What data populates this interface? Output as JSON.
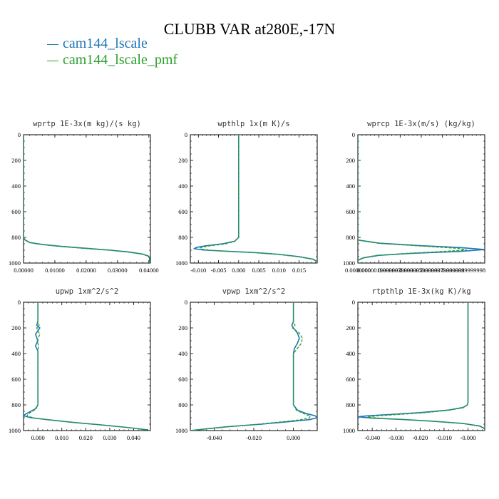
{
  "title": "CLUBB VAR at280E,-17N",
  "colors": {
    "series1": "#1f77b4",
    "series2": "#2ca02c"
  },
  "legend": [
    {
      "label": "cam144_lscale",
      "color": "#1f77b4"
    },
    {
      "label": "cam144_lscale_pmf",
      "color": "#2ca02c"
    }
  ],
  "chart_data": [
    {
      "type": "line",
      "title": "wprtp  1E-3x(m kg)/(s kg)",
      "xlim": [
        0.0,
        0.0405
      ],
      "ylim": [
        1000,
        0
      ],
      "xticks": [
        "0.00000",
        "0.01000",
        "0.02000",
        "0.03000",
        "0.04000"
      ],
      "xtick_values": [
        0.0,
        0.01,
        0.02,
        0.03,
        0.04
      ],
      "yticks": [
        0,
        200,
        400,
        600,
        800,
        1000
      ],
      "series": [
        {
          "name": "cam144_lscale",
          "points": [
            [
              0.0,
              0
            ],
            [
              0.0,
              800
            ],
            [
              0.0005,
              820
            ],
            [
              0.002,
              840
            ],
            [
              0.006,
              855
            ],
            [
              0.012,
              870
            ],
            [
              0.02,
              885
            ],
            [
              0.028,
              900
            ],
            [
              0.034,
              915
            ],
            [
              0.038,
              930
            ],
            [
              0.0398,
              945
            ],
            [
              0.0402,
              960
            ],
            [
              0.0403,
              1000
            ]
          ]
        },
        {
          "name": "cam144_lscale_pmf",
          "points": [
            [
              0.0,
              0
            ],
            [
              0.0,
              800
            ],
            [
              0.0005,
              822
            ],
            [
              0.002,
              842
            ],
            [
              0.006,
              857
            ],
            [
              0.012,
              872
            ],
            [
              0.02,
              887
            ],
            [
              0.028,
              902
            ],
            [
              0.034,
              917
            ],
            [
              0.038,
              932
            ],
            [
              0.0398,
              947
            ],
            [
              0.0402,
              962
            ],
            [
              0.0403,
              1000
            ]
          ]
        }
      ]
    },
    {
      "type": "line",
      "title": "wpthlp  1x(m K)/s",
      "xlim": [
        -0.012,
        0.0195
      ],
      "ylim": [
        1000,
        0
      ],
      "xticks": [
        "-0.010",
        "-0.005",
        "0.000",
        "0.005",
        "0.010",
        "0.015"
      ],
      "xtick_values": [
        -0.01,
        -0.005,
        0.0,
        0.005,
        0.01,
        0.015
      ],
      "yticks": [
        0,
        200,
        400,
        600,
        800,
        1000
      ],
      "series": [
        {
          "name": "cam144_lscale",
          "points": [
            [
              0.0,
              0
            ],
            [
              0.0,
              200
            ],
            [
              0.0,
              400
            ],
            [
              0.0,
              600
            ],
            [
              0.0,
              800
            ],
            [
              -0.001,
              830
            ],
            [
              -0.004,
              850
            ],
            [
              -0.008,
              865
            ],
            [
              -0.0105,
              878
            ],
            [
              -0.011,
              888
            ],
            [
              -0.009,
              898
            ],
            [
              -0.003,
              908
            ],
            [
              0.004,
              918
            ],
            [
              0.01,
              932
            ],
            [
              0.015,
              950
            ],
            [
              0.0185,
              970
            ],
            [
              0.0195,
              990
            ]
          ]
        },
        {
          "name": "cam144_lscale_pmf",
          "points": [
            [
              0.0,
              0
            ],
            [
              0.0,
              200
            ],
            [
              0.0,
              400
            ],
            [
              0.0,
              600
            ],
            [
              0.0,
              800
            ],
            [
              -0.001,
              832
            ],
            [
              -0.0035,
              852
            ],
            [
              -0.0075,
              867
            ],
            [
              -0.0095,
              880
            ],
            [
              -0.0095,
              890
            ],
            [
              -0.007,
              900
            ],
            [
              -0.002,
              910
            ],
            [
              0.004,
              920
            ],
            [
              0.01,
              934
            ],
            [
              0.015,
              952
            ],
            [
              0.0185,
              972
            ],
            [
              0.0195,
              992
            ]
          ]
        }
      ]
    },
    {
      "type": "line",
      "title": "wprcp  1E-3x(m/s) (kg/kg)",
      "xlim": [
        0.0,
        1.2e-05
      ],
      "ylim": [
        1000,
        0
      ],
      "xticks": [
        "0.0000000",
        "0.0000019999997",
        "0.0000039999997",
        "0.0000059999997",
        "0.0000079999998",
        "0.0000099999998"
      ],
      "xtick_values": [
        0.0,
        2e-06,
        4e-06,
        6e-06,
        8e-06,
        1e-05
      ],
      "yticks": [
        0,
        200,
        400,
        600,
        800,
        1000
      ],
      "series": [
        {
          "name": "cam144_lscale",
          "points": [
            [
              0.0,
              0
            ],
            [
              0.0,
              800
            ],
            [
              0.0,
              820
            ],
            [
              2e-06,
              845
            ],
            [
              6e-06,
              865
            ],
            [
              9.8e-06,
              880
            ],
            [
              1.2e-05,
              895
            ],
            [
              9.5e-06,
              910
            ],
            [
              5e-06,
              925
            ],
            [
              2e-06,
              940
            ],
            [
              5e-07,
              960
            ],
            [
              0.0,
              980
            ],
            [
              0.0,
              1000
            ]
          ]
        },
        {
          "name": "cam144_lscale_pmf",
          "points": [
            [
              0.0,
              0
            ],
            [
              0.0,
              800
            ],
            [
              0.0,
              822
            ],
            [
              2e-06,
              847
            ],
            [
              6e-06,
              868
            ],
            [
              9.4e-06,
              885
            ],
            [
              1.03e-05,
              898
            ],
            [
              8e-06,
              910
            ],
            [
              4.5e-06,
              925
            ],
            [
              1.8e-06,
              940
            ],
            [
              4e-07,
              960
            ],
            [
              0.0,
              980
            ],
            [
              0.0,
              1000
            ]
          ]
        }
      ]
    },
    {
      "type": "line",
      "title": "upwp  1xm^2/s^2",
      "xlim": [
        -0.006,
        0.047
      ],
      "ylim": [
        1000,
        0
      ],
      "xticks": [
        "0.000",
        "0.010",
        "0.020",
        "0.030",
        "0.040"
      ],
      "xtick_values": [
        0.0,
        0.01,
        0.02,
        0.03,
        0.04
      ],
      "yticks": [
        0,
        200,
        400,
        600,
        800,
        1000
      ],
      "series": [
        {
          "name": "cam144_lscale",
          "points": [
            [
              0.0,
              0
            ],
            [
              0.0,
              150
            ],
            [
              -0.0005,
              180
            ],
            [
              0.0008,
              200
            ],
            [
              -0.001,
              250
            ],
            [
              0.0,
              300
            ],
            [
              -0.001,
              340
            ],
            [
              0.0,
              380
            ],
            [
              0.0,
              600
            ],
            [
              0.0,
              800
            ],
            [
              -0.001,
              830
            ],
            [
              -0.003,
              850
            ],
            [
              -0.005,
              870
            ],
            [
              -0.006,
              885
            ],
            [
              -0.003,
              900
            ],
            [
              0.004,
              915
            ],
            [
              0.014,
              935
            ],
            [
              0.026,
              955
            ],
            [
              0.037,
              975
            ],
            [
              0.046,
              995
            ]
          ]
        },
        {
          "name": "cam144_lscale_pmf",
          "points": [
            [
              0.0,
              0
            ],
            [
              0.0,
              150
            ],
            [
              0.0005,
              180
            ],
            [
              -0.0005,
              200
            ],
            [
              0.0008,
              250
            ],
            [
              -0.0003,
              300
            ],
            [
              0.0003,
              340
            ],
            [
              0.0,
              380
            ],
            [
              0.0,
              600
            ],
            [
              0.0,
              800
            ],
            [
              -0.0008,
              832
            ],
            [
              -0.0025,
              852
            ],
            [
              -0.0042,
              872
            ],
            [
              -0.0045,
              887
            ],
            [
              -0.0015,
              902
            ],
            [
              0.005,
              917
            ],
            [
              0.015,
              937
            ],
            [
              0.027,
              957
            ],
            [
              0.038,
              977
            ],
            [
              0.046,
              997
            ]
          ]
        }
      ]
    },
    {
      "type": "line",
      "title": "vpwp  1xm^2/s^2",
      "xlim": [
        -0.052,
        0.012
      ],
      "ylim": [
        1000,
        0
      ],
      "xticks": [
        "-0.040",
        "-0.020",
        "0.000"
      ],
      "xtick_values": [
        -0.04,
        -0.02,
        0.0
      ],
      "yticks": [
        0,
        200,
        400,
        600,
        800,
        1000
      ],
      "series": [
        {
          "name": "cam144_lscale",
          "points": [
            [
              0.0,
              0
            ],
            [
              0.0,
              150
            ],
            [
              -0.0008,
              180
            ],
            [
              0.0,
              200
            ],
            [
              0.002,
              240
            ],
            [
              0.003,
              280
            ],
            [
              0.002,
              320
            ],
            [
              0.0005,
              360
            ],
            [
              0.0,
              400
            ],
            [
              0.0,
              600
            ],
            [
              0.0,
              800
            ],
            [
              0.002,
              840
            ],
            [
              0.006,
              865
            ],
            [
              0.011,
              885
            ],
            [
              0.012,
              900
            ],
            [
              0.008,
              915
            ],
            [
              -0.002,
              930
            ],
            [
              -0.016,
              950
            ],
            [
              -0.033,
              970
            ],
            [
              -0.046,
              990
            ],
            [
              -0.052,
              1000
            ]
          ]
        },
        {
          "name": "cam144_lscale_pmf",
          "points": [
            [
              0.0,
              0
            ],
            [
              0.0,
              150
            ],
            [
              0.0008,
              180
            ],
            [
              -0.0005,
              200
            ],
            [
              0.003,
              240
            ],
            [
              0.0045,
              280
            ],
            [
              0.004,
              320
            ],
            [
              0.002,
              360
            ],
            [
              0.0,
              400
            ],
            [
              0.0,
              600
            ],
            [
              0.0,
              800
            ],
            [
              0.0015,
              842
            ],
            [
              0.005,
              867
            ],
            [
              0.0085,
              887
            ],
            [
              0.008,
              902
            ],
            [
              0.003,
              917
            ],
            [
              -0.006,
              932
            ],
            [
              -0.019,
              952
            ],
            [
              -0.035,
              972
            ],
            [
              -0.047,
              992
            ],
            [
              -0.052,
              1000
            ]
          ]
        }
      ]
    },
    {
      "type": "line",
      "title": "rtpthlp  1E-3x(kg K)/kg",
      "xlim": [
        -0.046,
        0.007
      ],
      "ylim": [
        1000,
        0
      ],
      "xticks": [
        "-0.040",
        "-0.030",
        "-0.020",
        "-0.010",
        "-0.000"
      ],
      "xtick_values": [
        -0.04,
        -0.03,
        -0.02,
        -0.01,
        0.0
      ],
      "yticks": [
        0,
        200,
        400,
        600,
        800,
        1000
      ],
      "series": [
        {
          "name": "cam144_lscale",
          "points": [
            [
              0.0,
              0
            ],
            [
              0.0,
              200
            ],
            [
              0.0,
              400
            ],
            [
              0.0,
              600
            ],
            [
              0.0,
              780
            ],
            [
              -0.0003,
              800
            ],
            [
              -0.002,
              820
            ],
            [
              -0.008,
              840
            ],
            [
              -0.02,
              860
            ],
            [
              -0.033,
              875
            ],
            [
              -0.042,
              885
            ],
            [
              -0.046,
              893
            ],
            [
              -0.04,
              903
            ],
            [
              -0.028,
              913
            ],
            [
              -0.014,
              928
            ],
            [
              -0.002,
              945
            ],
            [
              0.005,
              965
            ],
            [
              0.007,
              985
            ],
            [
              0.007,
              1000
            ]
          ]
        },
        {
          "name": "cam144_lscale_pmf",
          "points": [
            [
              0.0,
              0
            ],
            [
              0.0,
              200
            ],
            [
              0.0,
              400
            ],
            [
              0.0,
              600
            ],
            [
              0.0,
              780
            ],
            [
              -0.0003,
              802
            ],
            [
              -0.002,
              822
            ],
            [
              -0.008,
              842
            ],
            [
              -0.019,
              862
            ],
            [
              -0.031,
              877
            ],
            [
              -0.039,
              887
            ],
            [
              -0.042,
              895
            ],
            [
              -0.036,
              905
            ],
            [
              -0.025,
              915
            ],
            [
              -0.012,
              930
            ],
            [
              -0.001,
              947
            ],
            [
              0.005,
              967
            ],
            [
              0.007,
              987
            ],
            [
              0.007,
              1000
            ]
          ]
        }
      ]
    }
  ]
}
